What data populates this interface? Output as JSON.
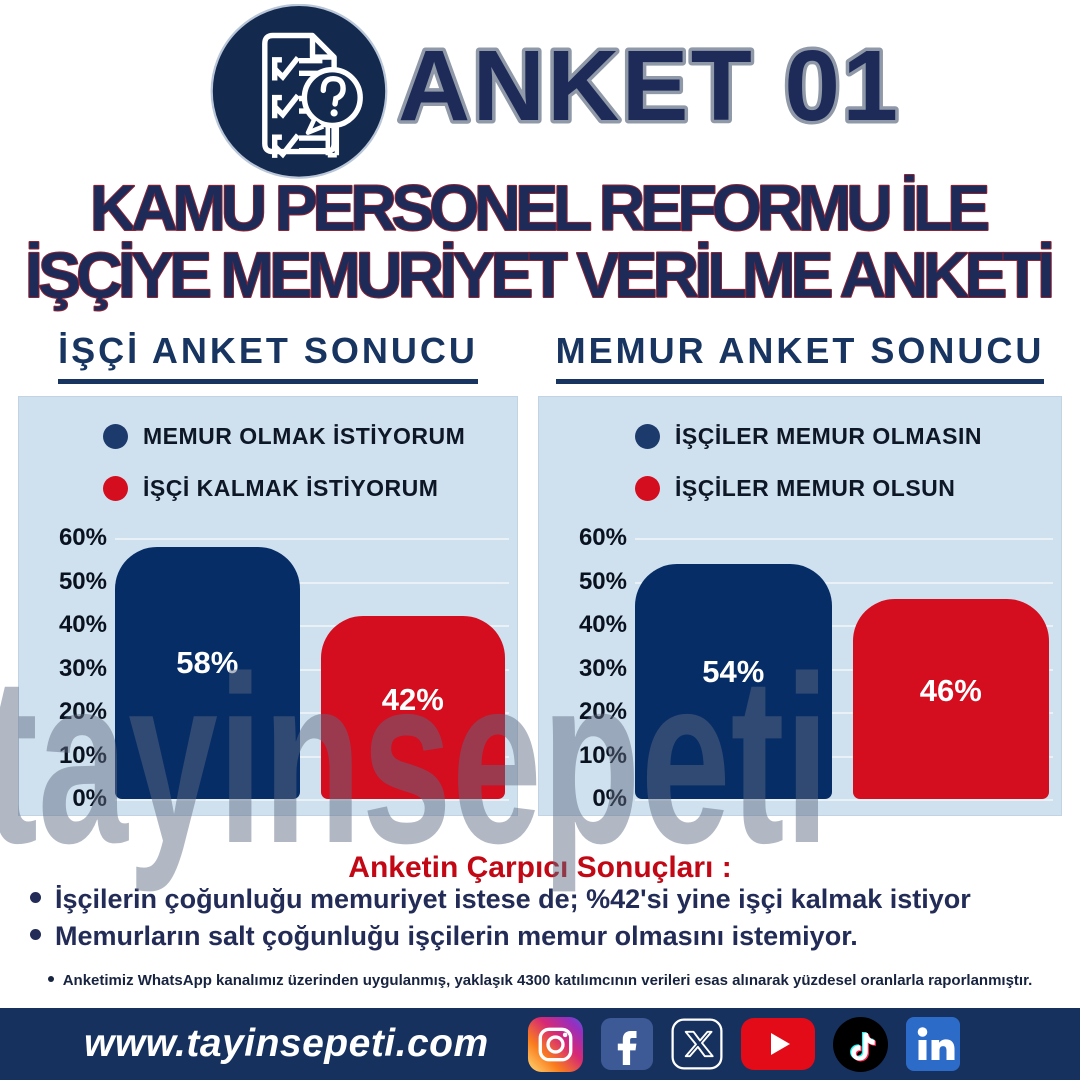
{
  "header": {
    "badge_title": "ANKET 01",
    "title_line1": "KAMU PERSONEL REFORMU İLE",
    "title_line2": "İŞÇİYE MEMURİYET VERİLME ANKETİ"
  },
  "chart_data": [
    {
      "type": "bar",
      "title": "İŞÇİ ANKET SONUCU",
      "categories": [
        "MEMUR OLMAK İSTİYORUM",
        "İŞÇİ KALMAK İSTİYORUM"
      ],
      "values": [
        58,
        42
      ],
      "labels": [
        "58%",
        "42%"
      ],
      "colors": [
        "#072d66",
        "#d40d1f"
      ],
      "legend": [
        {
          "label": "MEMUR OLMAK İSTİYORUM",
          "color": "#1d3a6d"
        },
        {
          "label": "İŞÇİ KALMAK İSTİYORUM",
          "color": "#d40d1f"
        }
      ],
      "yticks": [
        "60%",
        "50%",
        "40%",
        "30%",
        "20%",
        "10%",
        "0%"
      ],
      "ylim": [
        0,
        60
      ],
      "grid": true,
      "legend_position": "top"
    },
    {
      "type": "bar",
      "title": "MEMUR ANKET SONUCU",
      "categories": [
        "İŞÇİLER MEMUR OLMASIN",
        "İŞÇİLER MEMUR OLSUN"
      ],
      "values": [
        54,
        46
      ],
      "labels": [
        "54%",
        "46%"
      ],
      "colors": [
        "#072d66",
        "#d40d1f"
      ],
      "legend": [
        {
          "label": "İŞÇİLER MEMUR OLMASIN",
          "color": "#1d3a6d"
        },
        {
          "label": "İŞÇİLER MEMUR OLSUN",
          "color": "#d40d1f"
        }
      ],
      "yticks": [
        "60%",
        "50%",
        "40%",
        "30%",
        "20%",
        "10%",
        "0%"
      ],
      "ylim": [
        0,
        60
      ],
      "grid": true,
      "legend_position": "top"
    }
  ],
  "summary": {
    "heading": "Anketin Çarpıcı Sonuçları :",
    "bullets": [
      "İşçilerin çoğunluğu memuriyet istese de; %42'si yine işçi kalmak istiyor",
      "Memurların salt çoğunluğu işçilerin memur olmasını istemiyor."
    ],
    "footnote": "Anketimiz WhatsApp kanalımız üzerinden uygulanmış, yaklaşık 4300 katılımcının verileri esas alınarak yüzdesel oranlarla raporlanmıştır."
  },
  "watermark": "tayinsepeti",
  "footer": {
    "url": "www.tayinsepeti.com",
    "social_icons": [
      "instagram",
      "facebook",
      "x-twitter",
      "youtube",
      "tiktok",
      "linkedin"
    ]
  },
  "colors": {
    "navy": "#1e2b58",
    "bar_navy": "#072d66",
    "bar_red": "#d40d1f",
    "panel_bg": "#cfe0ee",
    "heading_red": "#c20815",
    "footer_bg": "#17315e",
    "watermark_gray": "#5f6b82"
  }
}
